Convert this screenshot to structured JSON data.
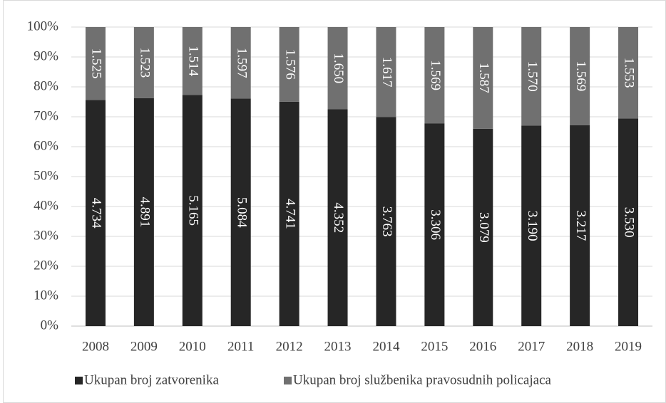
{
  "chart_data": {
    "type": "bar",
    "stack": "percent",
    "categories": [
      "2008",
      "2009",
      "2010",
      "2011",
      "2012",
      "2013",
      "2014",
      "2015",
      "2016",
      "2017",
      "2018",
      "2019"
    ],
    "series": [
      {
        "name": "Ukupan broj zatvorenika",
        "color": "#262626",
        "values": [
          4734,
          4891,
          5165,
          5084,
          4741,
          4352,
          3763,
          3306,
          3079,
          3190,
          3217,
          3530
        ],
        "value_labels": [
          "4.734",
          "4.891",
          "5.165",
          "5.084",
          "4.741",
          "4.352",
          "3.763",
          "3.306",
          "3.079",
          "3.190",
          "3.217",
          "3.530"
        ]
      },
      {
        "name": "Ukupan broj službenika pravosudnih policajaca",
        "color": "#707070",
        "values": [
          1525,
          1523,
          1514,
          1597,
          1576,
          1650,
          1617,
          1569,
          1587,
          1570,
          1569,
          1553
        ],
        "value_labels": [
          "1.525",
          "1.523",
          "1.514",
          "1.597",
          "1.576",
          "1.650",
          "1.617",
          "1.569",
          "1.587",
          "1.570",
          "1.569",
          "1.553"
        ]
      }
    ],
    "ylim": [
      0,
      100
    ],
    "yticks": [
      {
        "value": 0,
        "label": "0%"
      },
      {
        "value": 10,
        "label": "10%"
      },
      {
        "value": 20,
        "label": "20%"
      },
      {
        "value": 30,
        "label": "30%"
      },
      {
        "value": 40,
        "label": "40%"
      },
      {
        "value": 50,
        "label": "50%"
      },
      {
        "value": 60,
        "label": "60%"
      },
      {
        "value": 70,
        "label": "70%"
      },
      {
        "value": 80,
        "label": "80%"
      },
      {
        "value": 90,
        "label": "90%"
      },
      {
        "value": 100,
        "label": "100%"
      }
    ],
    "grid": true,
    "legend": "bottom"
  }
}
